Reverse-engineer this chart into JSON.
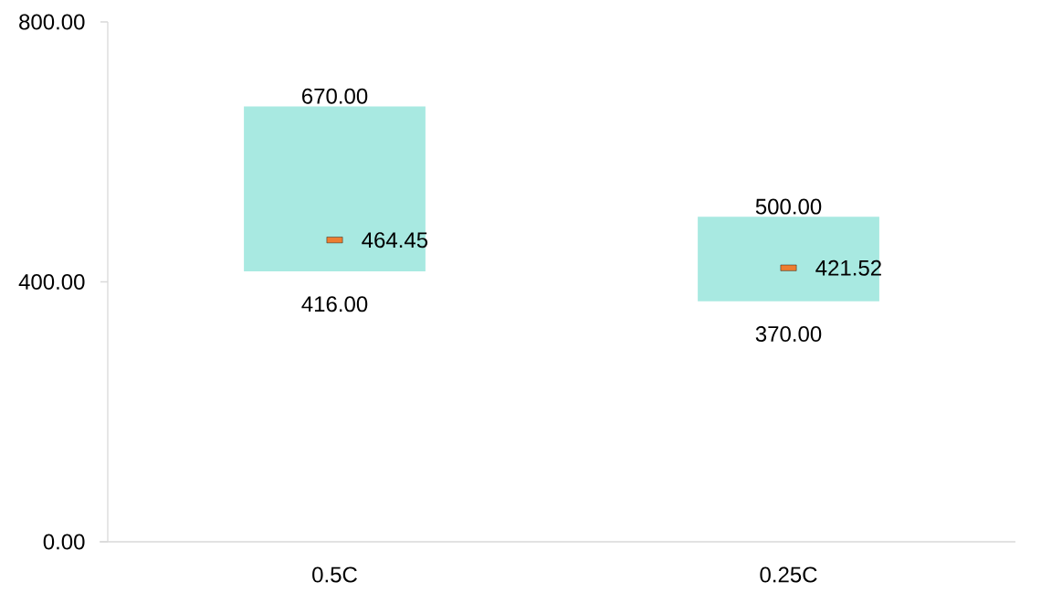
{
  "chart_data": {
    "type": "bar",
    "categories": [
      "0.5C",
      "0.25C"
    ],
    "ylim": [
      0,
      800
    ],
    "yticks": [
      {
        "value": 0,
        "label": "0.00"
      },
      {
        "value": 400,
        "label": "400.00"
      },
      {
        "value": 800,
        "label": "800.00"
      }
    ],
    "series": [
      {
        "color": "#a8e9e1",
        "values": [
          254,
          130
        ],
        "base": [
          416,
          370
        ]
      },
      {
        "type": "scatter",
        "color": "#ed7d31",
        "x": [
          "0.5C",
          "0.25C"
        ],
        "values": [
          464.45,
          421.52
        ],
        "value_labels": [
          "464.45",
          "421.52"
        ]
      }
    ],
    "annotations": [
      {
        "text": "670.00",
        "x": "0.5C",
        "y": 670
      },
      {
        "text": "416.00",
        "x": "0.5C",
        "y": 416
      },
      {
        "text": "500.00",
        "x": "0.25C",
        "y": 500
      },
      {
        "text": "370.00",
        "x": "0.25C",
        "y": 370
      }
    ]
  }
}
